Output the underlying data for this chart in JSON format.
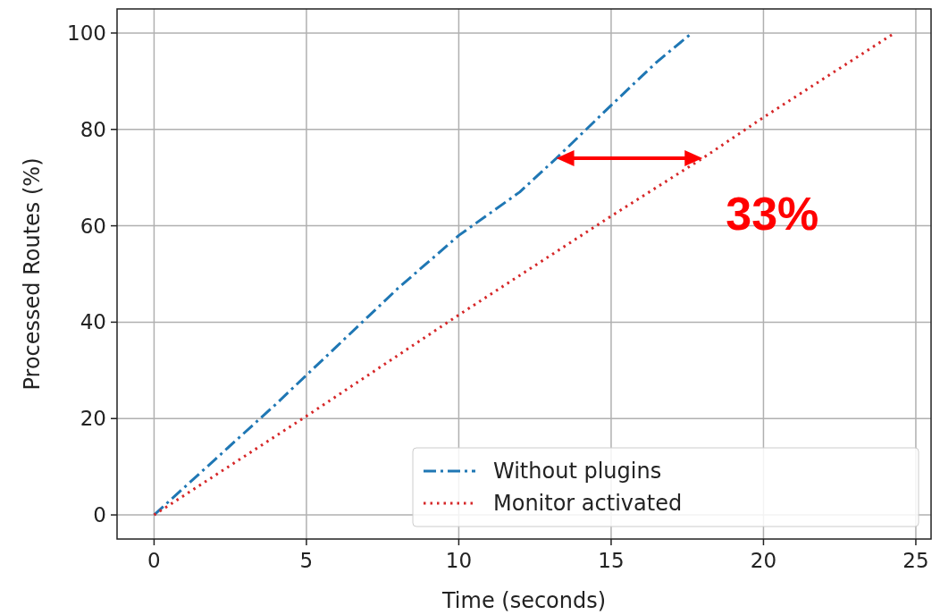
{
  "chart_data": {
    "type": "line",
    "xlabel": "Time (seconds)",
    "ylabel": "Processed Routes (%)",
    "xlim": [
      -1.215,
      25.5
    ],
    "ylim": [
      -5,
      105
    ],
    "xticks": [
      0,
      5,
      10,
      15,
      20,
      25
    ],
    "yticks": [
      0,
      20,
      40,
      60,
      80,
      100
    ],
    "grid": true,
    "legend": "bottom right",
    "marker": "none",
    "series": [
      {
        "name": "Without plugins",
        "color": "#1f77b4",
        "line_style": "dashdot",
        "x": [
          0,
          2,
          4,
          6,
          8,
          10,
          12,
          13.2,
          15,
          16.5,
          17.65
        ],
        "values": [
          0,
          11.5,
          23,
          35,
          47,
          58,
          67,
          74,
          85,
          94,
          100
        ]
      },
      {
        "name": "Monitor activated",
        "color": "#d62728",
        "line_style": "dotted",
        "x": [
          0,
          5,
          10,
          15,
          18,
          20,
          24.3
        ],
        "values": [
          0,
          20.5,
          41.5,
          62,
          74,
          82.5,
          100
        ]
      }
    ],
    "annotations": [
      {
        "text": "33%",
        "x": 18,
        "y": 74
      }
    ]
  }
}
